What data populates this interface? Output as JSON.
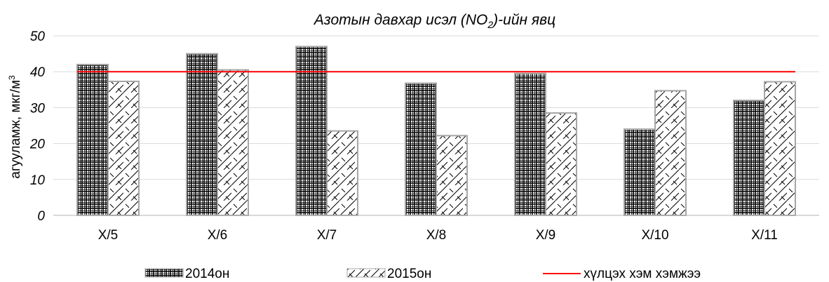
{
  "chart_data": {
    "type": "bar",
    "title": "Азотын давхар исэл (NO",
    "title_subscript": "2",
    "title_suffix": ")-ийн явц",
    "ylabel": "агууламж, мкг/м",
    "ylabel_superscript": "3",
    "xlabel": "",
    "categories": [
      "X/5",
      "X/6",
      "X/7",
      "X/8",
      "X/9",
      "X/10",
      "X/11"
    ],
    "series": [
      {
        "name": "2014он",
        "pattern": "grid",
        "values": [
          42,
          45,
          47,
          36.8,
          39.5,
          24,
          32
        ]
      },
      {
        "name": "2015он",
        "pattern": "zigzag",
        "values": [
          37.3,
          40.5,
          23.5,
          22.2,
          28.5,
          34.7,
          37.2
        ]
      }
    ],
    "reference_line": {
      "name": "хүлцэх хэм хэмжээ",
      "value": 40,
      "color": "#ff0000"
    },
    "ylim": [
      0,
      50
    ],
    "yticks": [
      0,
      10,
      20,
      30,
      40,
      50
    ],
    "grid": true,
    "legend_position": "bottom"
  }
}
